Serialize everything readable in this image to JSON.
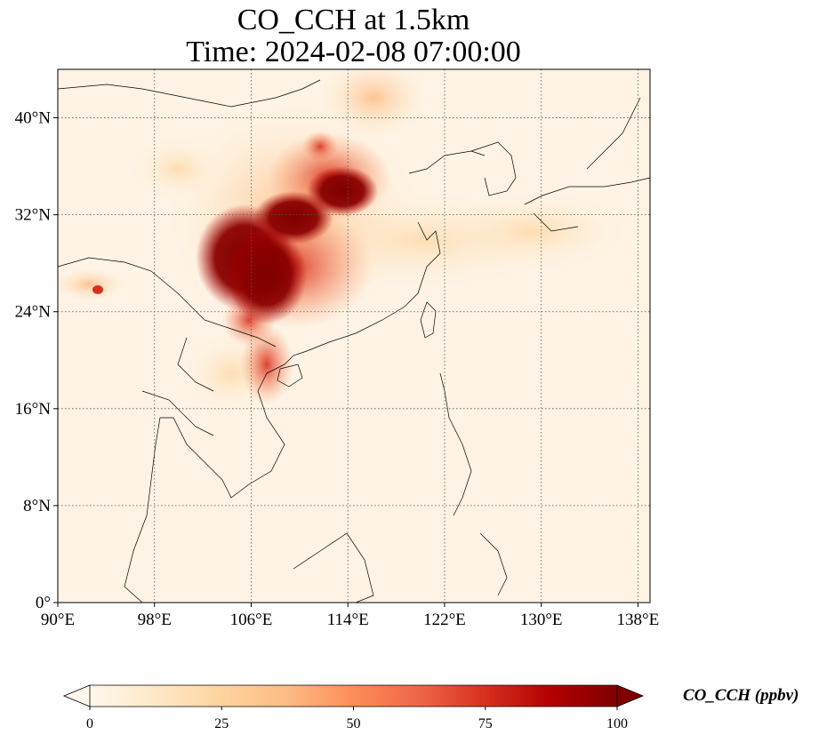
{
  "title": {
    "line1": "CO_CCH at 1.5km",
    "line2": "Time: 2024-02-08 07:00:00"
  },
  "map": {
    "projection": "PlateCarree",
    "lon_range": [
      90,
      139
    ],
    "lat_range": [
      0,
      44
    ],
    "gridlines": "dotted",
    "lon_ticks": [
      {
        "value": 90,
        "label": "90°E"
      },
      {
        "value": 98,
        "label": "98°E"
      },
      {
        "value": 106,
        "label": "106°E"
      },
      {
        "value": 114,
        "label": "114°E"
      },
      {
        "value": 122,
        "label": "122°E"
      },
      {
        "value": 130,
        "label": "130°E"
      },
      {
        "value": 138,
        "label": "138°E"
      }
    ],
    "lat_ticks": [
      {
        "value": 0,
        "label": "0°"
      },
      {
        "value": 8,
        "label": "8°N"
      },
      {
        "value": 16,
        "label": "16°N"
      },
      {
        "value": 24,
        "label": "24°N"
      },
      {
        "value": 32,
        "label": "32°N"
      },
      {
        "value": 40,
        "label": "40°N"
      }
    ],
    "colormap": "OrRd",
    "colors": [
      "#fff7ec",
      "#fee8c8",
      "#fdd49e",
      "#fdbb84",
      "#fc8d59",
      "#ef6548",
      "#d7301f",
      "#b30000",
      "#7f0000"
    ]
  },
  "colorbar": {
    "label": "CO_CCH (ppbv)",
    "min": 0,
    "max": 100,
    "extend": "both",
    "ticks": [
      {
        "value": 0,
        "label": "0"
      },
      {
        "value": 25,
        "label": "25"
      },
      {
        "value": 50,
        "label": "50"
      },
      {
        "value": 75,
        "label": "75"
      },
      {
        "value": 100,
        "label": "100"
      }
    ]
  }
}
